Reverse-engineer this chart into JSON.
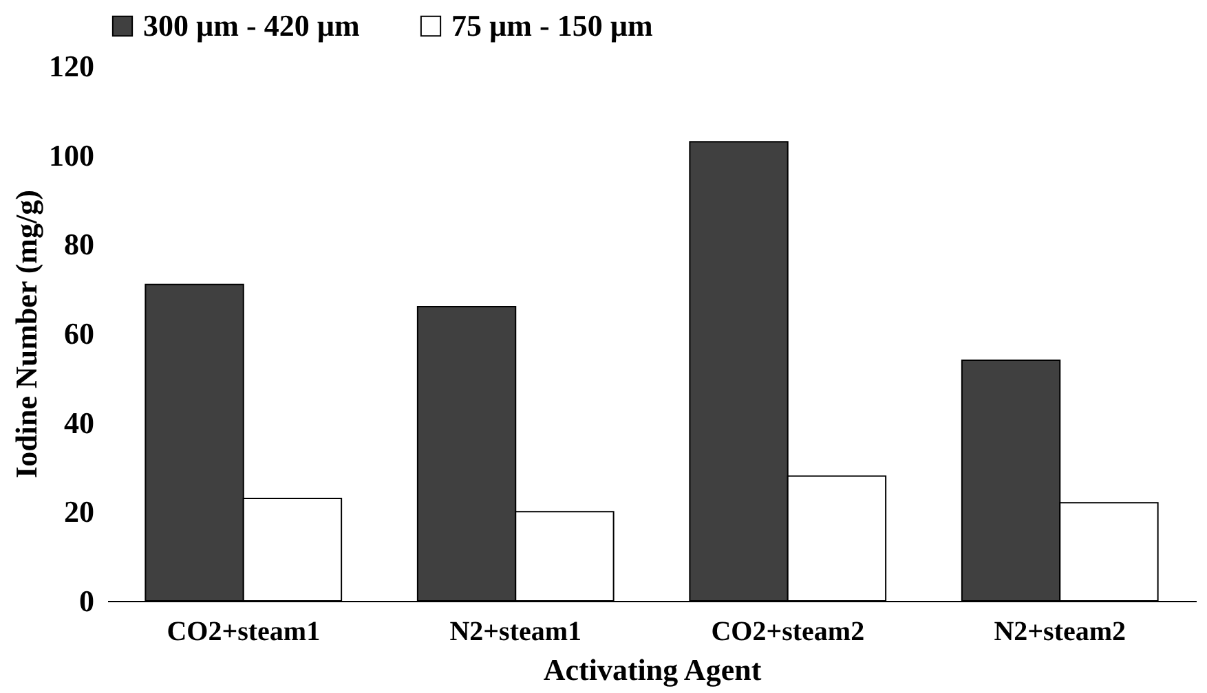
{
  "chart_data": {
    "type": "bar",
    "xlabel": "Activating Agent",
    "ylabel": "Iodine Number (mg/g)",
    "categories": [
      "CO2+steam1",
      "N2+steam1",
      "CO2+steam2",
      "N2+steam2"
    ],
    "series": [
      {
        "name": "300 µm - 420 µm",
        "color": "#404040",
        "values": [
          71,
          66,
          103,
          54
        ]
      },
      {
        "name": "75 µm - 150 µm",
        "color": "#ffffff",
        "values": [
          23,
          20,
          28,
          22
        ]
      }
    ],
    "ylim": [
      0,
      120
    ],
    "yticks": [
      0,
      20,
      40,
      60,
      80,
      100,
      120
    ],
    "grid": false,
    "legend": "top"
  }
}
